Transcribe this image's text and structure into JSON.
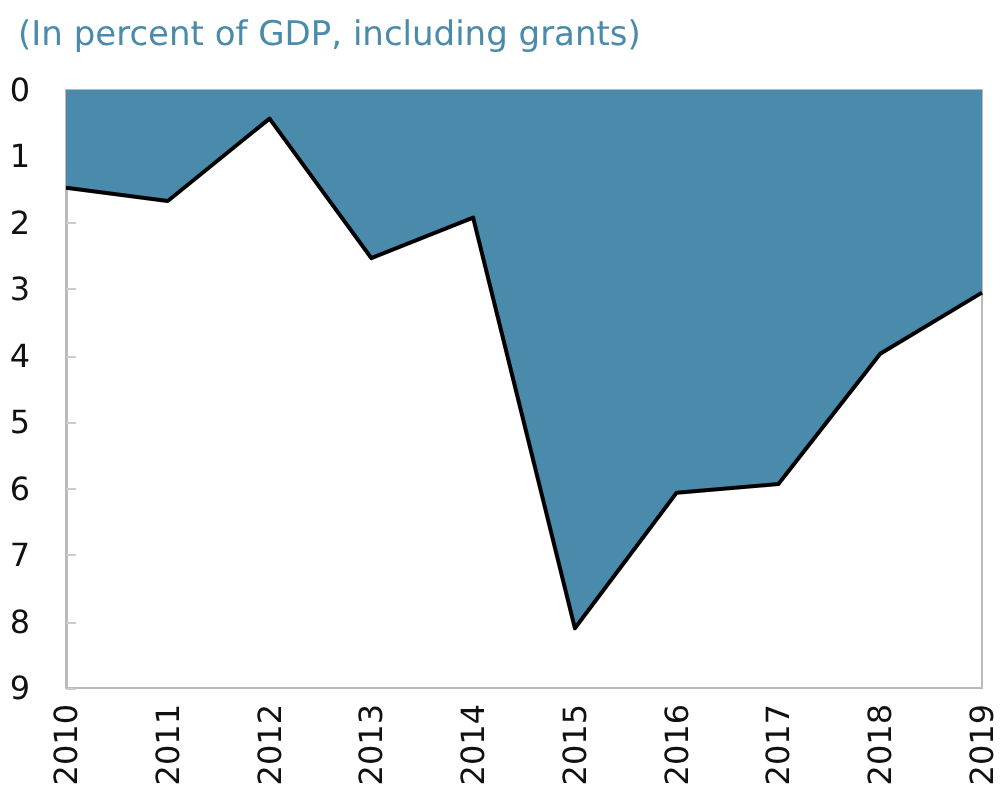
{
  "chart_data": {
    "type": "area",
    "title": "(In percent of GDP, including grants)",
    "categories": [
      "2010",
      "2011",
      "2012",
      "2013",
      "2014",
      "2015",
      "2016",
      "2017",
      "2018",
      "2019"
    ],
    "series": [
      {
        "color": "#4a8bab",
        "values": [
          1.47,
          1.67,
          0.43,
          2.53,
          1.92,
          8.1,
          6.06,
          5.93,
          3.97,
          3.05
        ]
      }
    ],
    "ylim": [
      9,
      0
    ],
    "yticks": [
      0,
      1,
      2,
      3,
      4,
      5,
      6,
      7,
      8,
      9
    ]
  }
}
